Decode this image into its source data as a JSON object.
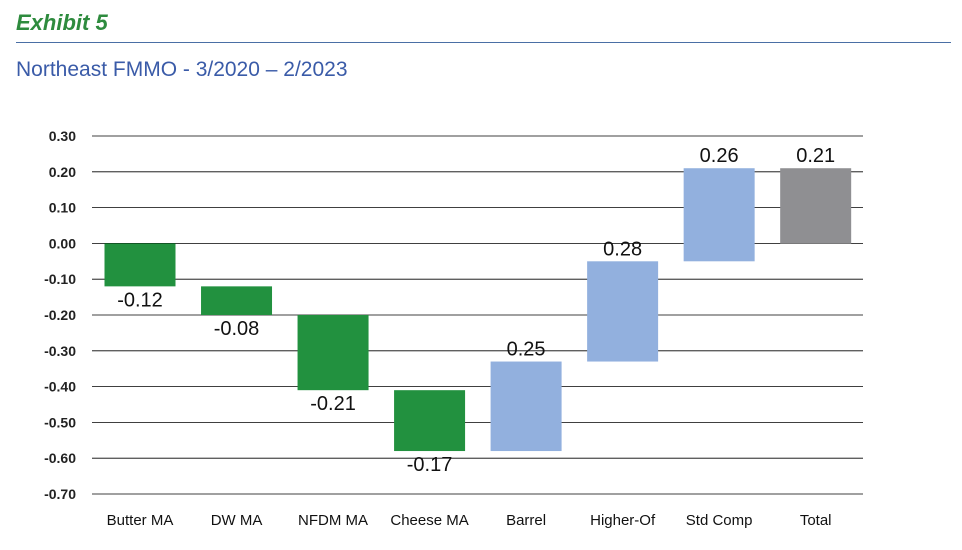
{
  "header": {
    "exhibit": "Exhibit 5",
    "title": "Northeast FMMO - 3/2020 – 2/2023"
  },
  "colors": {
    "negative": "#22913f",
    "positive": "#92b0de",
    "total": "#8f8f92",
    "grid": "#000000"
  },
  "chart_data": {
    "type": "bar",
    "subtype": "waterfall",
    "title": "Northeast FMMO - 3/2020 – 2/2023",
    "xlabel": "",
    "ylabel": "",
    "ylim": [
      -0.7,
      0.3
    ],
    "yticks": [
      "0.30",
      "0.20",
      "0.10",
      "0.00",
      "-0.10",
      "-0.20",
      "-0.30",
      "-0.40",
      "-0.50",
      "-0.60",
      "-0.70"
    ],
    "grid": true,
    "categories": [
      "Butter MA",
      "DW MA",
      "NFDM MA",
      "Cheese MA",
      "Barrel",
      "Higher-Of",
      "Std Comp",
      "Total"
    ],
    "values": [
      -0.12,
      -0.08,
      -0.21,
      -0.17,
      0.25,
      0.28,
      0.26,
      0.21
    ],
    "labels": [
      "-0.12",
      "-0.08",
      "-0.21",
      "-0.17",
      "0.25",
      "0.28",
      "0.26",
      "0.21"
    ],
    "kinds": [
      "negative",
      "negative",
      "negative",
      "negative",
      "positive",
      "positive",
      "positive",
      "total"
    ]
  }
}
